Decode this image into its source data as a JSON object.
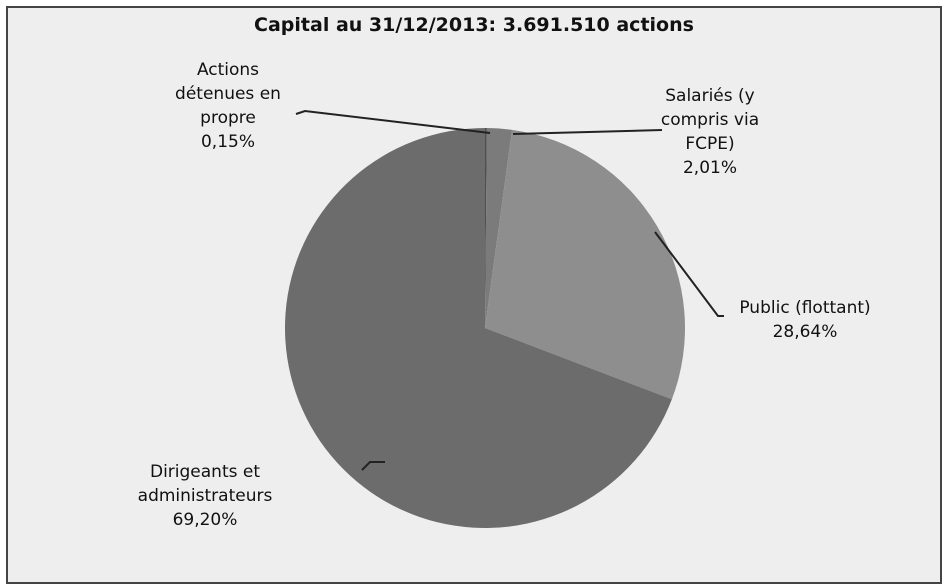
{
  "chart_data": {
    "type": "pie",
    "title": "Capital au 31/12/2013: 3.691.510 actions",
    "categories": [
      "Actions détenues en propre",
      "Salariés (y compris via FCPE)",
      "Public (flottant)",
      "Dirigeants et administrateurs"
    ],
    "values": [
      0.15,
      2.01,
      28.64,
      69.2
    ],
    "value_labels": [
      "0,15%",
      "2,01%",
      "28,64%",
      "69,20%"
    ],
    "colors": [
      "#4f4f4f",
      "#7b7b7b",
      "#8e8e8e",
      "#6c6c6c"
    ]
  }
}
